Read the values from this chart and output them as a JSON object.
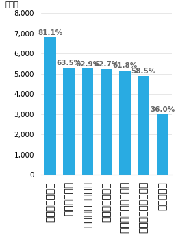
{
  "categories": [
    "改善・課題解決",
    "組織の自主性",
    "ＩＳＯの動機付け",
    "業態、規模考慮",
    "業務に沿い現場審査",
    "コミュニケーション",
    "経営に寄与"
  ],
  "values": [
    6800,
    5300,
    5250,
    5220,
    5170,
    4900,
    3000
  ],
  "labels": [
    "81.1%",
    "63.5%",
    "62.9%",
    "62.7%",
    "61.8%",
    "58.5%",
    "36.0%"
  ],
  "bar_color": "#29ABE2",
  "ylabel": "（件）",
  "ylim": [
    0,
    8000
  ],
  "yticks": [
    0,
    1000,
    2000,
    3000,
    4000,
    5000,
    6000,
    7000,
    8000
  ],
  "background_color": "#ffffff",
  "label_fontsize": 7.0,
  "tick_fontsize": 7.5,
  "ylabel_fontsize": 8,
  "value_fontsize": 7.5,
  "label_color": "#666666"
}
